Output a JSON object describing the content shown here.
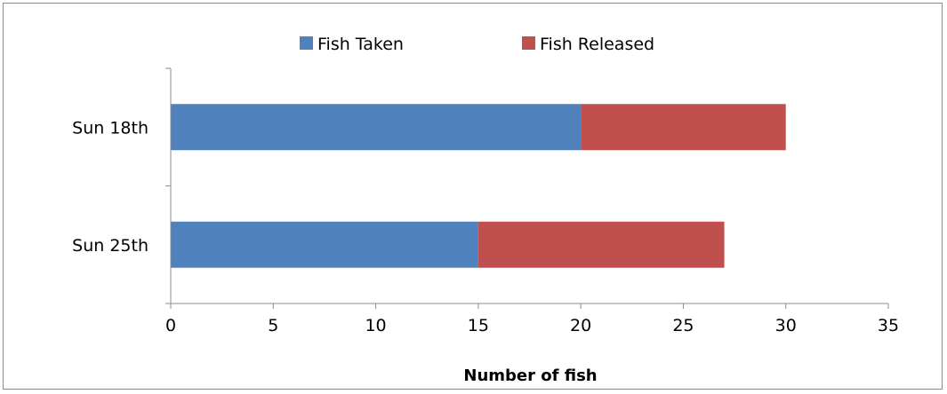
{
  "chart_data": {
    "type": "bar",
    "orientation": "horizontal",
    "stacked": true,
    "categories": [
      "Sun 18th",
      "Sun 25th"
    ],
    "series": [
      {
        "name": "Fish Taken",
        "values": [
          20,
          15
        ],
        "color": "#4f81bd"
      },
      {
        "name": "Fish Released",
        "values": [
          10,
          12
        ],
        "color": "#c0504d"
      }
    ],
    "xlabel": "Number of fish",
    "ylabel": "",
    "xlim": [
      0,
      35
    ],
    "xticks": [
      0,
      5,
      10,
      15,
      20,
      25,
      30,
      35
    ],
    "legend_position": "top",
    "grid": false
  }
}
